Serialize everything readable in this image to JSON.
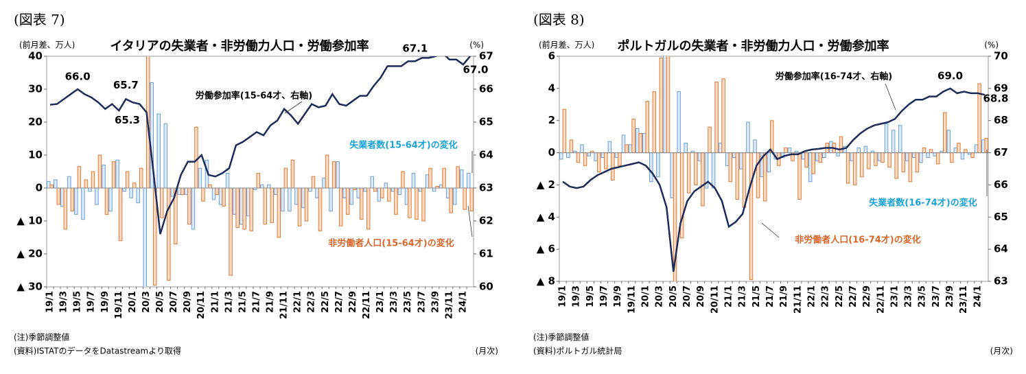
{
  "chart_data": [
    {
      "type": "combo",
      "figure_label": "(図表 7)",
      "title": "イタリアの失業者・非労働力人口・労働参加率",
      "ylabel": "(前月差、万人)",
      "y2label": "(%)",
      "xlabel": "(月次)",
      "note": "(注)季節調整値",
      "source": "(資料)ISTATのデータをDatastreamより取得",
      "categories": [
        "19/1",
        null,
        "19/3",
        null,
        "19/5",
        null,
        "19/7",
        null,
        "19/9",
        null,
        "19/11",
        null,
        "20/1",
        null,
        "20/3",
        null,
        "20/5",
        null,
        "20/7",
        null,
        "20/9",
        null,
        "20/11",
        null,
        "21/1",
        null,
        "21/3",
        null,
        "21/5",
        null,
        "21/7",
        null,
        "21/9",
        null,
        "21/11",
        null,
        "22/1",
        null,
        "22/3",
        null,
        "22/5",
        null,
        "22/7",
        null,
        "22/9",
        null,
        "22/11",
        null,
        "23/1",
        null,
        "23/3",
        null,
        "23/5",
        null,
        "23/7",
        null,
        "23/9",
        null,
        "23/11",
        null,
        "24/1",
        null
      ],
      "ylim": [
        -30,
        40
      ],
      "yticks": [
        {
          "value": -30,
          "label": "▲ 30"
        },
        {
          "value": -20,
          "label": "▲ 20"
        },
        {
          "value": -10,
          "label": "▲ 10"
        },
        0,
        10,
        20,
        30,
        40
      ],
      "y2lim": [
        60,
        67
      ],
      "y2ticks": [
        60,
        61,
        62,
        63,
        64,
        65,
        66,
        67
      ],
      "series": [
        {
          "name": "失業者数(15-64才)の変化",
          "type": "bar",
          "color": "#dce9f7",
          "stroke": "#6f9fd8",
          "values": [
            2,
            2.5,
            -5.5,
            3.5,
            -8,
            -9.5,
            -1,
            -5,
            7,
            -7,
            8.5,
            -1,
            -3,
            -4.5,
            -35,
            32,
            22.5,
            19.5,
            -2.5,
            -2,
            -2,
            -12.5,
            6,
            8.5,
            -3.5,
            -5,
            4.5,
            -8,
            -11,
            -8.5,
            -0.5,
            1,
            1,
            -2,
            -7,
            -7,
            -5,
            -6,
            -1,
            -3,
            3,
            -7,
            8,
            -3,
            -5,
            -3,
            -1,
            3.5,
            -4,
            1.5,
            -1,
            -2,
            -5,
            4.5,
            -1,
            4,
            -1,
            1,
            -3,
            -5,
            5.5,
            4.5
          ]
        },
        {
          "name": "非労働者人口(15-64才)の変化",
          "type": "bar",
          "color": "#fbdac4",
          "stroke": "#de7b3a",
          "values": [
            1,
            -5,
            -12.5,
            -7,
            6.5,
            2.5,
            5,
            10,
            -8,
            8,
            -16,
            5,
            1.5,
            6,
            45,
            -29.5,
            -9,
            -28,
            -17,
            -2,
            -11,
            18.5,
            -4,
            1,
            -2,
            -5.5,
            -26.5,
            -12,
            -12.5,
            -13,
            4.5,
            -11,
            -10.5,
            -15,
            6,
            8.5,
            -11.5,
            -10,
            3.5,
            -13,
            10,
            8,
            -11.5,
            -8,
            -0.5,
            -9.5,
            -12.5,
            -1,
            -3,
            -4,
            -8,
            5,
            -9,
            -9.5,
            -10,
            6,
            0.5,
            6,
            -7.5,
            6.5,
            -6.5,
            -7
          ]
        },
        {
          "name": "労働参加率(15-64才、右軸)",
          "type": "line",
          "axis": "y2",
          "color": "#1c2b5a",
          "values": [
            65.53,
            65.55,
            65.7,
            65.85,
            66.0,
            65.85,
            65.75,
            65.6,
            65.4,
            65.55,
            65.35,
            65.7,
            65.6,
            65.55,
            65.3,
            63.5,
            61.6,
            62.3,
            62.7,
            63.4,
            63.8,
            63.8,
            64.0,
            63.4,
            63.35,
            63.45,
            63.6,
            64.3,
            64.4,
            64.55,
            64.7,
            64.6,
            64.9,
            65.05,
            65.4,
            65.2,
            64.95,
            65.25,
            65.55,
            65.45,
            65.5,
            65.85,
            65.55,
            65.5,
            65.65,
            65.8,
            65.8,
            66.1,
            66.35,
            66.7,
            66.7,
            66.7,
            66.85,
            66.85,
            66.95,
            66.95,
            67.0,
            67.1,
            66.9,
            66.9,
            66.75,
            67.0
          ],
          "value_labels": [
            null,
            null,
            null,
            null,
            "66.0",
            null,
            null,
            null,
            null,
            null,
            null,
            "65.7",
            null,
            null,
            "65.3",
            null,
            null,
            null,
            null,
            null,
            null,
            null,
            null,
            null,
            null,
            null,
            null,
            null,
            null,
            null,
            null,
            null,
            null,
            null,
            null,
            null,
            null,
            null,
            null,
            null,
            null,
            null,
            null,
            null,
            null,
            null,
            null,
            null,
            null,
            null,
            null,
            null,
            null,
            null,
            null,
            null,
            null,
            "67.1",
            null,
            null,
            null,
            "67.0"
          ]
        }
      ]
    },
    {
      "type": "combo",
      "figure_label": "(図表 8)",
      "title": "ポルトガルの失業者・非労働力人口・労働参加率",
      "ylabel": "(前月差、万人)",
      "y2label": "(%)",
      "xlabel": "(月次)",
      "note": "(注)季節調整値",
      "source": "(資料)ポルトガル統計局",
      "categories": [
        "19/1",
        null,
        "19/3",
        null,
        "19/5",
        null,
        "19/7",
        null,
        "19/9",
        null,
        "19/11",
        null,
        "20/1",
        null,
        "20/3",
        null,
        "20/5",
        null,
        "20/7",
        null,
        "20/9",
        null,
        "20/11",
        null,
        "21/1",
        null,
        "21/3",
        null,
        "21/5",
        null,
        "21/7",
        null,
        "21/9",
        null,
        "21/11",
        null,
        "22/1",
        null,
        "22/3",
        null,
        "22/5",
        null,
        "22/7",
        null,
        "22/9",
        null,
        "22/11",
        null,
        "23/1",
        null,
        "23/3",
        null,
        "23/5",
        null,
        "23/7",
        null,
        "23/9",
        null,
        "23/11",
        null,
        "24/1",
        null
      ],
      "ylim": [
        -8,
        6
      ],
      "yticks": [
        {
          "value": -8,
          "label": "▲ 8"
        },
        {
          "value": -6,
          "label": "▲ 6"
        },
        {
          "value": -4,
          "label": "▲ 4"
        },
        {
          "value": -2,
          "label": "▲ 2"
        },
        0,
        2,
        4,
        6
      ],
      "y2lim": [
        63,
        70
      ],
      "y2ticks": [
        63,
        64,
        65,
        66,
        67,
        68,
        69,
        70
      ],
      "series": [
        {
          "name": "失業者数(16-74才)の変化",
          "type": "bar",
          "color": "#dce9f7",
          "stroke": "#6f9fd8",
          "values": [
            -0.4,
            -0.3,
            0.1,
            0.5,
            -0.2,
            -0.5,
            -0.3,
            0.7,
            -0.3,
            1.1,
            0.5,
            1.5,
            1.2,
            -1.8,
            -1.5,
            6.5,
            -2.8,
            3.8,
            0.6,
            0.1,
            -0.5,
            -2.2,
            -2.2,
            0.6,
            -0.8,
            -0.3,
            -1.0,
            1.9,
            0.8,
            -1.5,
            -1.2,
            -0.4,
            -0.3,
            0.3,
            0.1,
            -0.4,
            -1.8,
            -0.5,
            -0.3,
            0.7,
            -0.2,
            0.4,
            -0.5,
            0.3,
            0.4,
            0.1,
            -0.5,
            1.8,
            1.4,
            1.7,
            -0.5,
            -0.3,
            -0.6,
            -0.3,
            -0.2,
            0.1,
            1.4,
            0.3,
            -0.4,
            -0.1,
            0.5,
            0.8
          ]
        },
        {
          "name": "非労働者人口(16-74才)の変化",
          "type": "bar",
          "color": "#fbdac4",
          "stroke": "#de7b3a",
          "values": [
            2.7,
            0.8,
            -0.6,
            -0.8,
            0.1,
            -1.2,
            -1.0,
            -1.7,
            -0.8,
            0.5,
            2.1,
            1.2,
            3.2,
            3.8,
            5.9,
            6.5,
            -8.5,
            -5.3,
            -2.5,
            -2.0,
            -3.3,
            1.6,
            4.4,
            4.6,
            -1.8,
            -2.9,
            -3.4,
            -7.9,
            -2.8,
            -3.0,
            2.0,
            -0.8,
            0.3,
            -0.5,
            -2.9,
            -0.9,
            -1.3,
            -0.6,
            0.6,
            0.6,
            1.0,
            -1.9,
            -2.0,
            -1.5,
            -1.0,
            -0.8,
            -0.6,
            -0.9,
            -1.6,
            -1.2,
            -1.8,
            -1.2,
            0.3,
            0.2,
            -0.7,
            2.5,
            -0.6,
            0.6,
            0.2,
            -0.3,
            4.3,
            0.9
          ]
        },
        {
          "name": "労働参加率(16-74才、右軸)",
          "type": "line",
          "axis": "y2",
          "color": "#1c2b5a",
          "values": [
            66.1,
            65.95,
            65.9,
            65.95,
            66.15,
            66.3,
            66.4,
            66.5,
            66.55,
            66.6,
            66.65,
            66.7,
            66.6,
            66.35,
            66.0,
            65.3,
            63.3,
            64.8,
            65.5,
            65.8,
            65.95,
            66.1,
            65.9,
            65.5,
            64.7,
            64.85,
            65.1,
            65.9,
            66.6,
            66.9,
            67.1,
            66.8,
            66.9,
            66.95,
            66.95,
            67.05,
            67.1,
            67.12,
            67.15,
            67.15,
            67.1,
            67.15,
            67.4,
            67.6,
            67.75,
            67.85,
            67.9,
            67.95,
            68.05,
            68.3,
            68.5,
            68.65,
            68.65,
            68.75,
            68.75,
            68.9,
            69.0,
            68.85,
            68.9,
            68.85,
            68.85,
            68.8
          ],
          "value_labels": [
            null,
            null,
            null,
            null,
            null,
            null,
            null,
            null,
            null,
            null,
            null,
            null,
            null,
            null,
            null,
            null,
            null,
            null,
            null,
            null,
            null,
            null,
            null,
            null,
            null,
            null,
            null,
            null,
            null,
            null,
            null,
            null,
            null,
            null,
            null,
            null,
            null,
            null,
            null,
            null,
            null,
            null,
            null,
            null,
            null,
            null,
            null,
            null,
            null,
            null,
            null,
            null,
            null,
            null,
            null,
            null,
            "69.0",
            null,
            null,
            null,
            null,
            "68.8"
          ]
        }
      ]
    }
  ]
}
